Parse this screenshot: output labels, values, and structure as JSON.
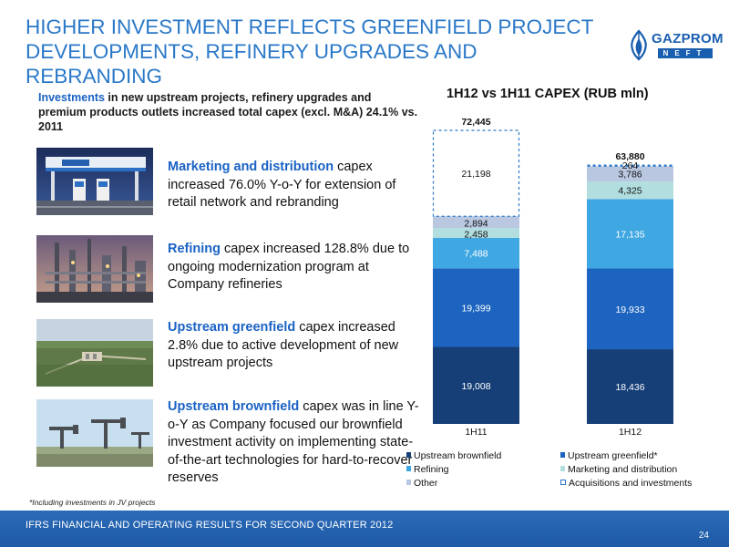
{
  "header": {
    "title_line1": "HIGHER INVESTMENT REFLECTS GREENFIELD PROJECT",
    "title_line2": "DEVELOPMENTS, REFINERY UPGRADES AND REBRANDING",
    "logo_text": "GAZPROM",
    "logo_sub": "NEFT"
  },
  "intro": {
    "highlight": "Investments",
    "text": " in new upstream projects, refinery upgrades and premium products outlets increased total capex (excl. M&A) 24.1% vs. 2011"
  },
  "blocks": [
    {
      "highlight": "Marketing and distribution",
      "text": " capex increased 76.0% Y-o-Y for extension of retail network and rebranding"
    },
    {
      "highlight": "Refining",
      "text": " capex increased 128.8% due to ongoing modernization program at Company refineries"
    },
    {
      "highlight": "Upstream greenfield",
      "text": " capex increased 2.8% due to active development of new upstream projects"
    },
    {
      "highlight": "Upstream brownfield",
      "text": "  capex was in line Y-o-Y as Company focused our brownfield investment activity on implementing state-of-the-art technologies for hard-to-recover reserves"
    }
  ],
  "footnote": "*Including investments in JV projects",
  "footer": {
    "text": "IFRS FINANCIAL AND OPERATING RESULTS FOR SECOND QUARTER 2012",
    "page": "24"
  },
  "colors": {
    "brownfield": "#163f78",
    "greenfield": "#1c64bf",
    "refining": "#3fa7e2",
    "marketing": "#b2dee0",
    "other": "#b9c7e0",
    "acquisitions": "#2a78c8"
  },
  "chart_data": {
    "type": "bar",
    "stacked": true,
    "title": "1H12 vs 1H11 CAPEX (RUB mln)",
    "categories": [
      "1H11",
      "1H12"
    ],
    "series": [
      {
        "name": "Upstream brownfield",
        "values": [
          19008,
          18436
        ]
      },
      {
        "name": "Upstream greenfield*",
        "values": [
          19399,
          19933
        ]
      },
      {
        "name": "Refining",
        "values": [
          7488,
          17135
        ]
      },
      {
        "name": "Marketing and distribution",
        "values": [
          2458,
          4325
        ]
      },
      {
        "name": "Other",
        "values": [
          2894,
          3786
        ]
      },
      {
        "name": "Acquisitions and investments",
        "values": [
          21198,
          264
        ]
      }
    ],
    "value_labels": [
      [
        "19,008",
        "18,436"
      ],
      [
        "19,399",
        "19,933"
      ],
      [
        "7,488",
        "17,135"
      ],
      [
        "2,458",
        "4,325"
      ],
      [
        "2,894",
        "3,786"
      ],
      [
        "21,198",
        "264"
      ]
    ],
    "totals": [
      "72,445",
      "63,880"
    ],
    "total_values": [
      72445,
      63880
    ],
    "ylim": [
      0,
      72445
    ],
    "grid": false,
    "legend_position": "bottom"
  }
}
